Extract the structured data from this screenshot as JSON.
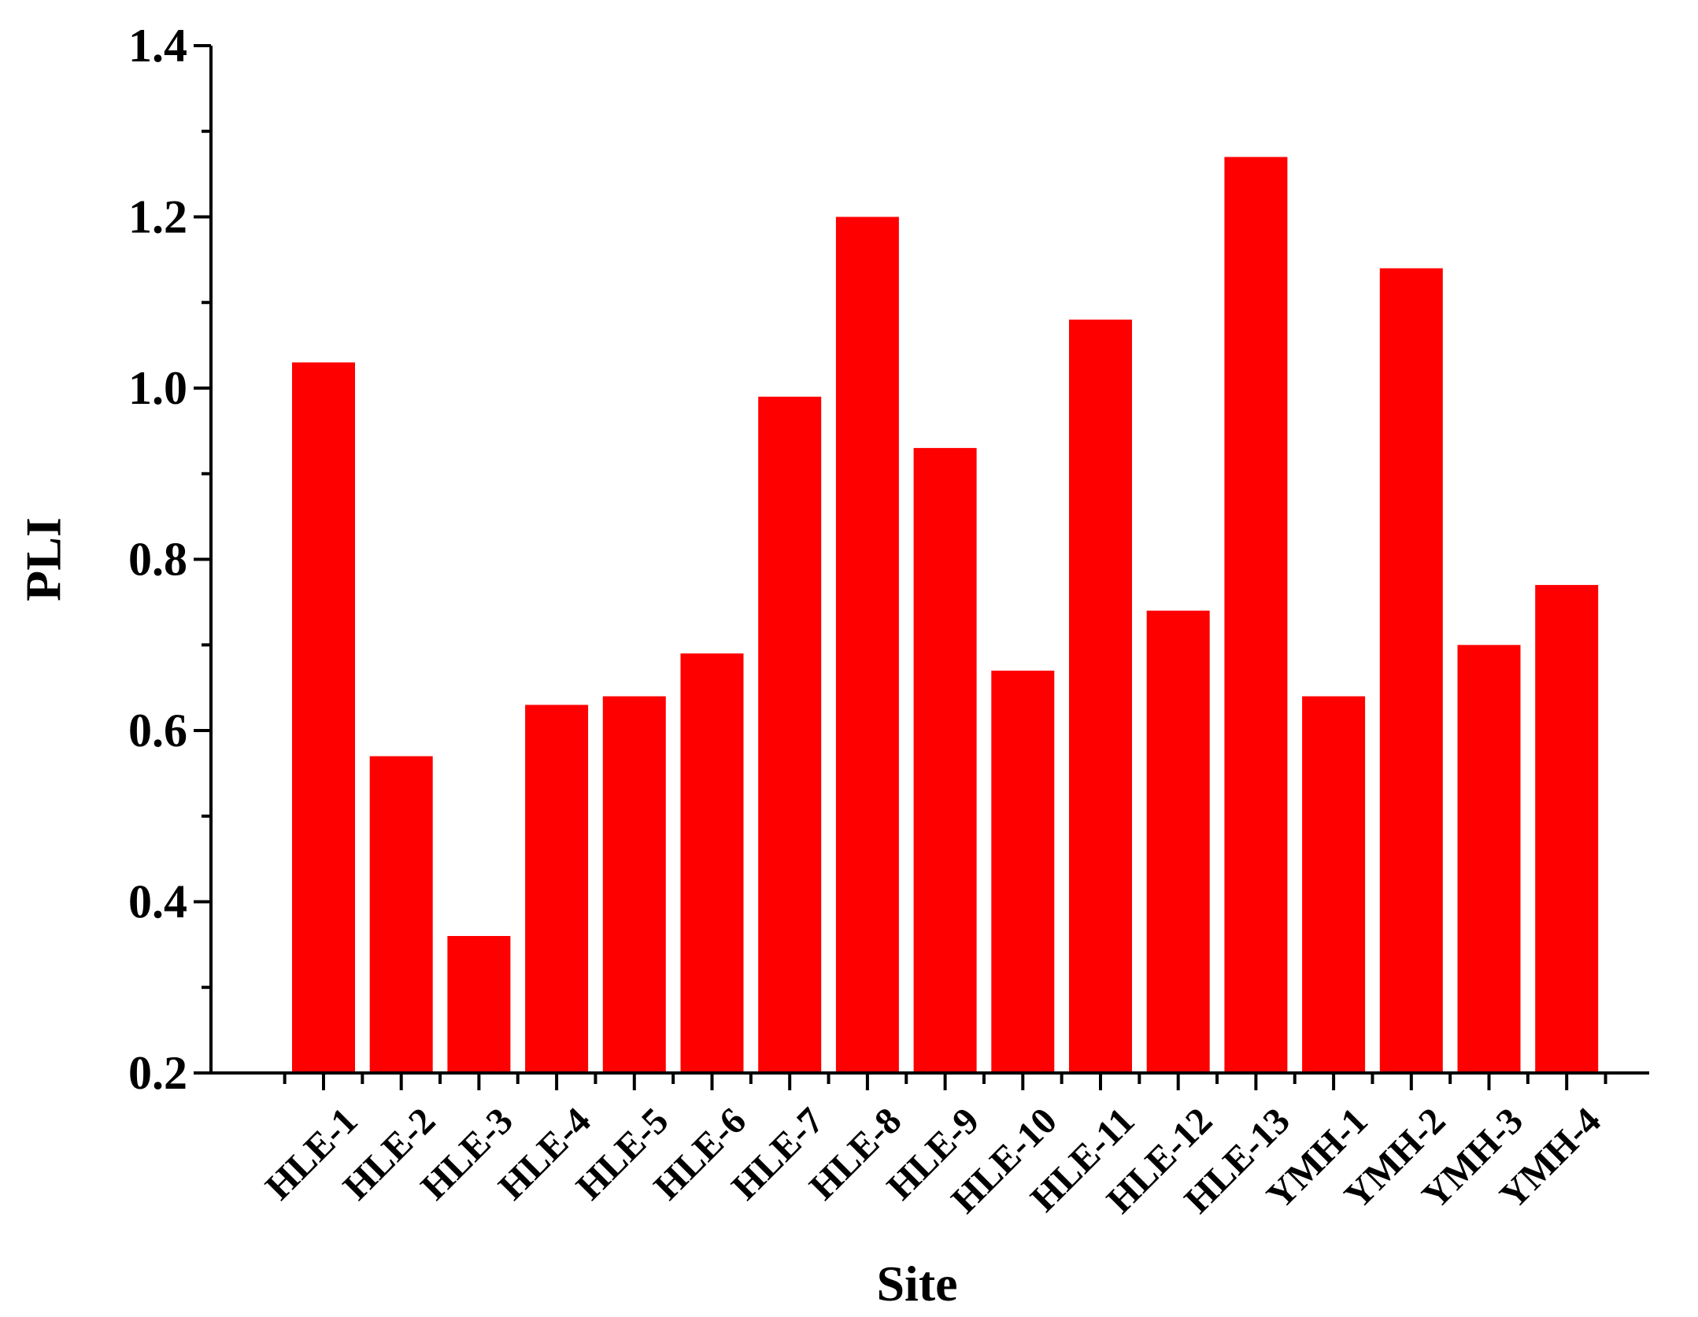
{
  "chart_data": {
    "type": "bar",
    "categories": [
      "HLE-1",
      "HLE-2",
      "HLE-3",
      "HLE-4",
      "HLE-5",
      "HLE-6",
      "HLE-7",
      "HLE-8",
      "HLE-9",
      "HLE-10",
      "HLE-11",
      "HLE-12",
      "HLE-13",
      "YMH-1",
      "YMH-2",
      "YMH-3",
      "YMH-4"
    ],
    "values": [
      1.03,
      0.57,
      0.36,
      0.63,
      0.64,
      0.69,
      0.99,
      1.2,
      0.93,
      0.67,
      1.08,
      0.74,
      1.27,
      0.64,
      1.14,
      0.7,
      0.77
    ],
    "title": "",
    "xlabel": "Site",
    "ylabel": "PLI",
    "ylim": [
      0.2,
      1.4
    ],
    "yticks": [
      "0.2",
      "0.4",
      "0.6",
      "0.8",
      "1.0",
      "1.2",
      "1.4"
    ],
    "bar_color": "#ff0000",
    "grid": false,
    "legend": "none"
  }
}
